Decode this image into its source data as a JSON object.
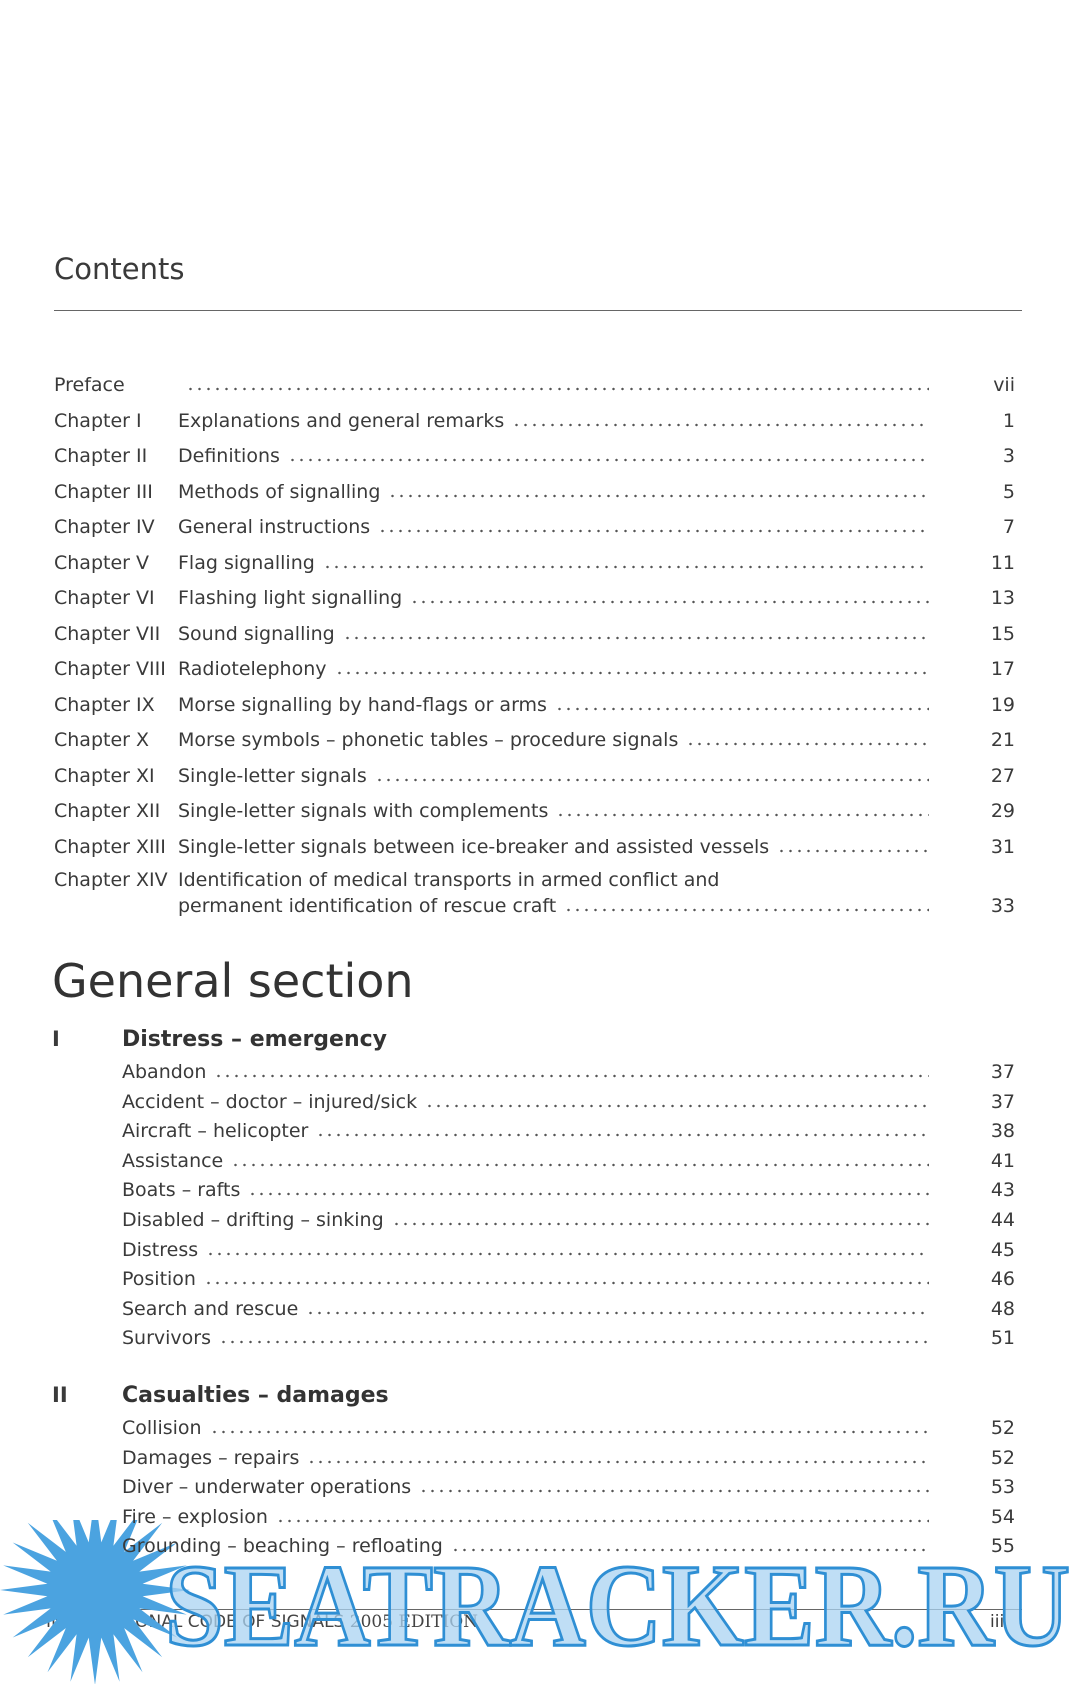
{
  "header": {
    "title": "Contents"
  },
  "toc": [
    {
      "label": "Preface",
      "title": "",
      "page": "vii"
    },
    {
      "label": "Chapter I",
      "title": "Explanations and general remarks",
      "page": "1"
    },
    {
      "label": "Chapter II",
      "title": "Definitions",
      "page": "3"
    },
    {
      "label": "Chapter III",
      "title": "Methods of signalling",
      "page": "5"
    },
    {
      "label": "Chapter IV",
      "title": "General instructions",
      "page": "7"
    },
    {
      "label": "Chapter V",
      "title": "Flag signalling",
      "page": "11"
    },
    {
      "label": "Chapter VI",
      "title": "Flashing light signalling",
      "page": "13"
    },
    {
      "label": "Chapter VII",
      "title": "Sound signalling",
      "page": "15"
    },
    {
      "label": "Chapter VIII",
      "title": "Radiotelephony",
      "page": "17"
    },
    {
      "label": "Chapter IX",
      "title": "Morse signalling by hand-flags or arms",
      "page": "19"
    },
    {
      "label": "Chapter X",
      "title": "Morse symbols – phonetic tables – procedure signals",
      "page": "21"
    },
    {
      "label": "Chapter XI",
      "title": "Single-letter signals",
      "page": "27"
    },
    {
      "label": "Chapter XII",
      "title": "Single-letter signals with complements",
      "page": "29"
    },
    {
      "label": "Chapter XIII",
      "title": "Single-letter signals between ice-breaker and assisted vessels",
      "page": "31"
    },
    {
      "label": "Chapter XIV",
      "title": "Identification of medical transports in armed conflict and",
      "title_continued": "permanent identification of rescue craft",
      "page": "33"
    }
  ],
  "section": {
    "title": "General section",
    "groups": [
      {
        "numeral": "I",
        "heading": "Distress – emergency",
        "entries": [
          {
            "title": "Abandon",
            "page": "37"
          },
          {
            "title": "Accident – doctor – injured/sick",
            "page": "37"
          },
          {
            "title": "Aircraft – helicopter",
            "page": "38"
          },
          {
            "title": "Assistance",
            "page": "41"
          },
          {
            "title": "Boats – rafts",
            "page": "43"
          },
          {
            "title": "Disabled – drifting – sinking",
            "page": "44"
          },
          {
            "title": "Distress",
            "page": "45"
          },
          {
            "title": "Position",
            "page": "46"
          },
          {
            "title": "Search and rescue",
            "page": "48"
          },
          {
            "title": "Survivors",
            "page": "51"
          }
        ]
      },
      {
        "numeral": "II",
        "heading": "Casualties – damages",
        "entries": [
          {
            "title": "Collision",
            "page": "52"
          },
          {
            "title": "Damages – repairs",
            "page": "52"
          },
          {
            "title": "Diver – underwater operations",
            "page": "53"
          },
          {
            "title": "Fire – explosion",
            "page": "54"
          },
          {
            "title": "Grounding – beaching – refloating",
            "page": "55"
          }
        ]
      }
    ]
  },
  "footer": {
    "title": "INTERNATIONAL CODE OF SIGNALS",
    "edition": "2005 EDITION",
    "page": "iii"
  },
  "watermark": "SEATRACKER.RU"
}
